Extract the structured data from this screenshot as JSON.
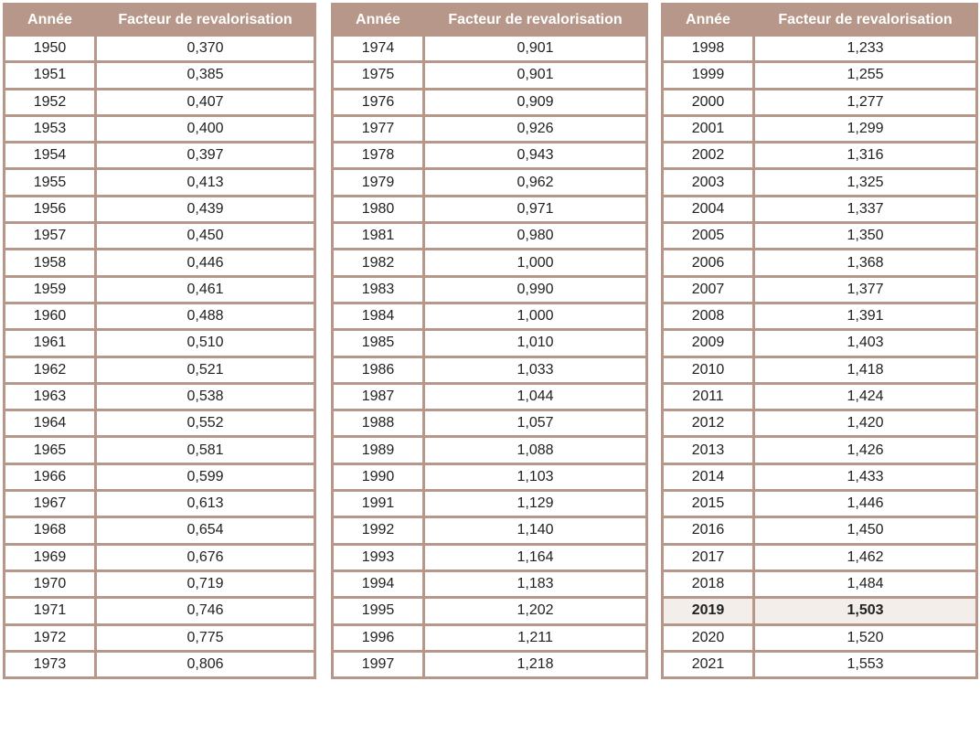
{
  "headers": {
    "year": "Année",
    "factor": "Facteur de revalorisation"
  },
  "colors": {
    "header_bg": "#b6978a",
    "highlight_bg": "#f3eee9"
  },
  "highlight_year": "2019",
  "tables": [
    {
      "rows": [
        {
          "year": "1950",
          "factor": "0,370"
        },
        {
          "year": "1951",
          "factor": "0,385"
        },
        {
          "year": "1952",
          "factor": "0,407"
        },
        {
          "year": "1953",
          "factor": "0,400"
        },
        {
          "year": "1954",
          "factor": "0,397"
        },
        {
          "year": "1955",
          "factor": "0,413"
        },
        {
          "year": "1956",
          "factor": "0,439"
        },
        {
          "year": "1957",
          "factor": "0,450"
        },
        {
          "year": "1958",
          "factor": "0,446"
        },
        {
          "year": "1959",
          "factor": "0,461"
        },
        {
          "year": "1960",
          "factor": "0,488"
        },
        {
          "year": "1961",
          "factor": "0,510"
        },
        {
          "year": "1962",
          "factor": "0,521"
        },
        {
          "year": "1963",
          "factor": "0,538"
        },
        {
          "year": "1964",
          "factor": "0,552"
        },
        {
          "year": "1965",
          "factor": "0,581"
        },
        {
          "year": "1966",
          "factor": "0,599"
        },
        {
          "year": "1967",
          "factor": "0,613"
        },
        {
          "year": "1968",
          "factor": "0,654"
        },
        {
          "year": "1969",
          "factor": "0,676"
        },
        {
          "year": "1970",
          "factor": "0,719"
        },
        {
          "year": "1971",
          "factor": "0,746"
        },
        {
          "year": "1972",
          "factor": "0,775"
        },
        {
          "year": "1973",
          "factor": "0,806"
        }
      ]
    },
    {
      "rows": [
        {
          "year": "1974",
          "factor": "0,901"
        },
        {
          "year": "1975",
          "factor": "0,901"
        },
        {
          "year": "1976",
          "factor": "0,909"
        },
        {
          "year": "1977",
          "factor": "0,926"
        },
        {
          "year": "1978",
          "factor": "0,943"
        },
        {
          "year": "1979",
          "factor": "0,962"
        },
        {
          "year": "1980",
          "factor": "0,971"
        },
        {
          "year": "1981",
          "factor": "0,980"
        },
        {
          "year": "1982",
          "factor": "1,000"
        },
        {
          "year": "1983",
          "factor": "0,990"
        },
        {
          "year": "1984",
          "factor": "1,000"
        },
        {
          "year": "1985",
          "factor": "1,010"
        },
        {
          "year": "1986",
          "factor": "1,033"
        },
        {
          "year": "1987",
          "factor": "1,044"
        },
        {
          "year": "1988",
          "factor": "1,057"
        },
        {
          "year": "1989",
          "factor": "1,088"
        },
        {
          "year": "1990",
          "factor": "1,103"
        },
        {
          "year": "1991",
          "factor": "1,129"
        },
        {
          "year": "1992",
          "factor": "1,140"
        },
        {
          "year": "1993",
          "factor": "1,164"
        },
        {
          "year": "1994",
          "factor": "1,183"
        },
        {
          "year": "1995",
          "factor": "1,202"
        },
        {
          "year": "1996",
          "factor": "1,211"
        },
        {
          "year": "1997",
          "factor": "1,218"
        }
      ]
    },
    {
      "rows": [
        {
          "year": "1998",
          "factor": "1,233"
        },
        {
          "year": "1999",
          "factor": "1,255"
        },
        {
          "year": "2000",
          "factor": "1,277"
        },
        {
          "year": "2001",
          "factor": "1,299"
        },
        {
          "year": "2002",
          "factor": "1,316"
        },
        {
          "year": "2003",
          "factor": "1,325"
        },
        {
          "year": "2004",
          "factor": "1,337"
        },
        {
          "year": "2005",
          "factor": "1,350"
        },
        {
          "year": "2006",
          "factor": "1,368"
        },
        {
          "year": "2007",
          "factor": "1,377"
        },
        {
          "year": "2008",
          "factor": "1,391"
        },
        {
          "year": "2009",
          "factor": "1,403"
        },
        {
          "year": "2010",
          "factor": "1,418"
        },
        {
          "year": "2011",
          "factor": "1,424"
        },
        {
          "year": "2012",
          "factor": "1,420"
        },
        {
          "year": "2013",
          "factor": "1,426"
        },
        {
          "year": "2014",
          "factor": "1,433"
        },
        {
          "year": "2015",
          "factor": "1,446"
        },
        {
          "year": "2016",
          "factor": "1,450"
        },
        {
          "year": "2017",
          "factor": "1,462"
        },
        {
          "year": "2018",
          "factor": "1,484"
        },
        {
          "year": "2019",
          "factor": "1,503"
        },
        {
          "year": "2020",
          "factor": "1,520"
        },
        {
          "year": "2021",
          "factor": "1,553"
        }
      ]
    }
  ]
}
